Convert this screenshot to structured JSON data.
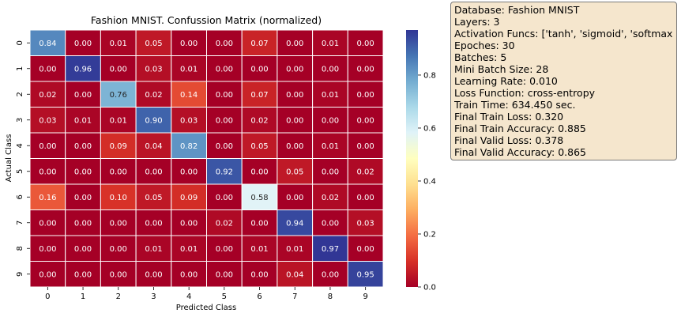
{
  "chart_data": {
    "type": "heatmap",
    "title": "Fashion MNIST. Confussion Matrix (normalized)",
    "xlabel": "Predicted Class",
    "ylabel": "Actual Class",
    "x_categories": [
      "0",
      "1",
      "2",
      "3",
      "4",
      "5",
      "6",
      "7",
      "8",
      "9"
    ],
    "y_categories": [
      "0",
      "1",
      "2",
      "3",
      "4",
      "5",
      "6",
      "7",
      "8",
      "9"
    ],
    "values": [
      [
        0.84,
        0.0,
        0.01,
        0.05,
        0.0,
        0.0,
        0.07,
        0.0,
        0.01,
        0.0
      ],
      [
        0.0,
        0.96,
        0.0,
        0.03,
        0.01,
        0.0,
        0.0,
        0.0,
        0.0,
        0.0
      ],
      [
        0.02,
        0.0,
        0.76,
        0.02,
        0.14,
        0.0,
        0.07,
        0.0,
        0.01,
        0.0
      ],
      [
        0.03,
        0.01,
        0.01,
        0.9,
        0.03,
        0.0,
        0.02,
        0.0,
        0.0,
        0.0
      ],
      [
        0.0,
        0.0,
        0.09,
        0.04,
        0.82,
        0.0,
        0.05,
        0.0,
        0.01,
        0.0
      ],
      [
        0.0,
        0.0,
        0.0,
        0.0,
        0.0,
        0.92,
        0.0,
        0.05,
        0.0,
        0.02
      ],
      [
        0.16,
        0.0,
        0.1,
        0.05,
        0.09,
        0.0,
        0.58,
        0.0,
        0.02,
        0.0
      ],
      [
        0.0,
        0.0,
        0.0,
        0.0,
        0.0,
        0.02,
        0.0,
        0.94,
        0.0,
        0.03
      ],
      [
        0.0,
        0.0,
        0.0,
        0.01,
        0.01,
        0.0,
        0.01,
        0.01,
        0.97,
        0.0
      ],
      [
        0.0,
        0.0,
        0.0,
        0.0,
        0.0,
        0.0,
        0.0,
        0.04,
        0.0,
        0.95
      ]
    ],
    "colormap": "RdYlBu",
    "vmin": 0.0,
    "vmax": 0.97,
    "colorbar_ticks": [
      "0.0",
      "0.2",
      "0.4",
      "0.6",
      "0.8"
    ],
    "colorbar_tick_values": [
      0.0,
      0.2,
      0.4,
      0.6,
      0.8
    ],
    "colors": {
      "low": "#a50026",
      "mid": "#ffffbf",
      "high": "#313695",
      "cell_border": "#ffffff",
      "info_box_bg": "#f5e6cd"
    }
  },
  "info_box": {
    "lines": [
      "Database: Fashion MNIST",
      "Layers: 3",
      "Activation Funcs: ['tanh', 'sigmoid', 'softmax']",
      "Epoches: 30",
      "Batches: 5",
      "Mini Batch Size: 28",
      "Learning Rate: 0.010",
      "Loss Function: cross-entropy",
      "Train Time: 634.450 sec.",
      "Final Train Loss: 0.320",
      "Final Train Accuracy: 0.885",
      "Final Valid Loss: 0.378",
      "Final Valid Accuracy: 0.865"
    ]
  }
}
